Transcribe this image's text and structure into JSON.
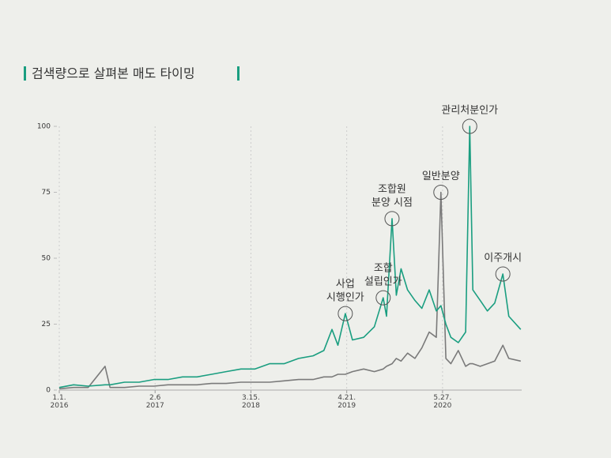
{
  "chart_data": {
    "type": "line",
    "title": "검색량으로 살펴본 매도 타이밍",
    "x": [
      "2016-01-01",
      "2016-03-01",
      "2016-05-01",
      "2016-07-11",
      "2016-08-01",
      "2016-10-01",
      "2016-12-01",
      "2017-02-01",
      "2017-04-01",
      "2017-06-01",
      "2017-08-01",
      "2017-10-01",
      "2017-12-01",
      "2018-02-01",
      "2018-04-01",
      "2018-06-01",
      "2018-08-01",
      "2018-10-01",
      "2018-12-01",
      "2019-01-15",
      "2019-02-18",
      "2019-03-15",
      "2019-04-15",
      "2019-05-15",
      "2019-07-01",
      "2019-08-15",
      "2019-09-21",
      "2019-10-05",
      "2019-10-28",
      "2019-11-15",
      "2019-12-05",
      "2020-01-01",
      "2020-02-01",
      "2020-03-01",
      "2020-04-01",
      "2020-05-01",
      "2020-05-20",
      "2020-06-10",
      "2020-07-01",
      "2020-08-01",
      "2020-09-01",
      "2020-09-18",
      "2020-10-01",
      "2020-11-01",
      "2020-12-01",
      "2021-01-01",
      "2021-02-04",
      "2021-03-01",
      "2021-04-20"
    ],
    "series": [
      {
        "color": "#1a9e80",
        "values": [
          1,
          2,
          1.5,
          2,
          2,
          3,
          3,
          4,
          4,
          5,
          5,
          6,
          7,
          8,
          8,
          10,
          10,
          12,
          13,
          15,
          23,
          17,
          29,
          19,
          20,
          24,
          35,
          28,
          65,
          36,
          46,
          38,
          34,
          31,
          38,
          30,
          32,
          25,
          20,
          18,
          22,
          100,
          38,
          34,
          30,
          33,
          44,
          28,
          23
        ]
      },
      {
        "color": "#7a7a7a",
        "values": [
          0.5,
          1,
          1,
          9,
          1,
          1,
          1.5,
          1.5,
          2,
          2,
          2,
          2.5,
          2.5,
          3,
          3,
          3,
          3.5,
          4,
          4,
          5,
          5,
          6,
          6,
          7,
          8,
          7,
          8,
          9,
          10,
          12,
          11,
          14,
          12,
          16,
          22,
          20,
          75,
          12,
          10,
          15,
          9,
          10,
          10,
          9,
          10,
          11,
          17,
          12,
          11
        ]
      }
    ],
    "xlim": [
      "2016-01-01",
      "2021-04-24"
    ],
    "xticks": [
      {
        "value": "2016-01-01",
        "label": "1.1. 2016"
      },
      {
        "value": "2017-02-06",
        "label": "2.6 2017"
      },
      {
        "value": "2018-03-15",
        "label": "3.15. 2018"
      },
      {
        "value": "2019-04-21",
        "label": "4.21. 2019"
      },
      {
        "value": "2020-05-27",
        "label": "5.27. 2020"
      }
    ],
    "ylim": [
      0,
      100
    ],
    "yticks": [
      0,
      25,
      50,
      75,
      100
    ],
    "grid": true,
    "annotations": [
      {
        "lines": [
          "사업",
          "시행인가"
        ],
        "x": "2019-04-15"
      },
      {
        "lines": [
          "조합",
          "설립인가"
        ],
        "x": "2019-09-21"
      },
      {
        "lines": [
          "조합원",
          "분양 시점"
        ],
        "x": "2019-10-28"
      },
      {
        "lines": [
          "일반분양"
        ],
        "x": "2020-05-20"
      },
      {
        "lines": [
          "관리처분인가"
        ],
        "x": "2020-09-18"
      },
      {
        "lines": [
          "이주개시"
        ],
        "x": "2021-02-04"
      }
    ]
  }
}
